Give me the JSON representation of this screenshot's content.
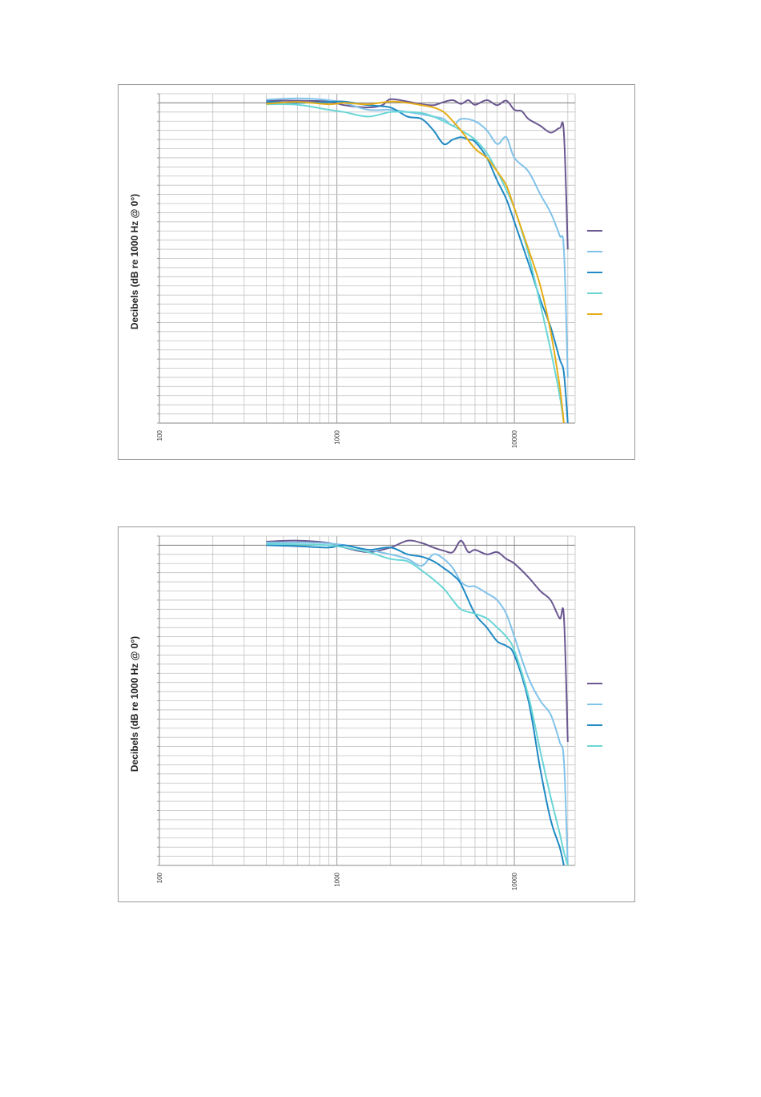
{
  "chart_data": [
    {
      "type": "line",
      "ylabel": "Decibels (dB re 1000 Hz @ 0°)",
      "x_scale": "log",
      "xlim": [
        100,
        22000
      ],
      "x_ticks": [
        "100",
        "1000",
        "10000"
      ],
      "ylim": [
        -70,
        2
      ],
      "grid": true,
      "legend": "right",
      "series": [
        {
          "color": "#6b5891",
          "points": [
            [
              400,
              0.5
            ],
            [
              600,
              0.5
            ],
            [
              900,
              0.3
            ],
            [
              1100,
              -0.5
            ],
            [
              1500,
              -1
            ],
            [
              1800,
              -0.5
            ],
            [
              2000,
              0.8
            ],
            [
              2500,
              0.3
            ],
            [
              3000,
              -0.3
            ],
            [
              3500,
              -0.5
            ],
            [
              4000,
              0.2
            ],
            [
              4500,
              0.6
            ],
            [
              5000,
              -0.2
            ],
            [
              5500,
              0.6
            ],
            [
              6000,
              -0.4
            ],
            [
              7000,
              0.6
            ],
            [
              8000,
              -0.5
            ],
            [
              9000,
              0.5
            ],
            [
              10000,
              -1.5
            ],
            [
              11000,
              -1.8
            ],
            [
              12000,
              -3.5
            ],
            [
              14000,
              -5
            ],
            [
              16000,
              -6.5
            ],
            [
              18000,
              -5.5
            ],
            [
              19000,
              -6.5
            ],
            [
              20000,
              -32
            ]
          ]
        },
        {
          "color": "#82c3ea",
          "points": [
            [
              400,
              0.7
            ],
            [
              600,
              1
            ],
            [
              900,
              0.6
            ],
            [
              1100,
              0
            ],
            [
              1500,
              -1.5
            ],
            [
              2000,
              -1.5
            ],
            [
              2500,
              -2
            ],
            [
              3000,
              -2.5
            ],
            [
              3500,
              -3
            ],
            [
              4000,
              -3.5
            ],
            [
              4500,
              -5
            ],
            [
              5000,
              -3.5
            ],
            [
              6000,
              -4
            ],
            [
              7000,
              -6
            ],
            [
              8000,
              -9
            ],
            [
              9000,
              -7.5
            ],
            [
              10000,
              -12
            ],
            [
              12000,
              -15
            ],
            [
              14000,
              -20
            ],
            [
              16000,
              -24
            ],
            [
              18000,
              -29
            ],
            [
              19000,
              -32
            ],
            [
              20000,
              -60
            ]
          ]
        },
        {
          "color": "#1f8ac4",
          "points": [
            [
              400,
              0.3
            ],
            [
              600,
              0
            ],
            [
              900,
              0.2
            ],
            [
              1100,
              0.3
            ],
            [
              1500,
              -0.5
            ],
            [
              2000,
              -1
            ],
            [
              2500,
              -3
            ],
            [
              3000,
              -3.5
            ],
            [
              3500,
              -6
            ],
            [
              4000,
              -9
            ],
            [
              4500,
              -8
            ],
            [
              5000,
              -7.5
            ],
            [
              5500,
              -8
            ],
            [
              6000,
              -8.5
            ],
            [
              7000,
              -12
            ],
            [
              8000,
              -17
            ],
            [
              9000,
              -21
            ],
            [
              10000,
              -26
            ],
            [
              12000,
              -35
            ],
            [
              14000,
              -43
            ],
            [
              16000,
              -49
            ],
            [
              18000,
              -56
            ],
            [
              19000,
              -59
            ],
            [
              20000,
              -70
            ]
          ]
        },
        {
          "color": "#6ad6d6",
          "points": [
            [
              400,
              -0.3
            ],
            [
              600,
              -0.4
            ],
            [
              900,
              -1.5
            ],
            [
              1100,
              -2
            ],
            [
              1500,
              -3
            ],
            [
              2000,
              -2
            ],
            [
              2500,
              -2
            ],
            [
              3000,
              -2.2
            ],
            [
              3500,
              -3
            ],
            [
              4000,
              -4
            ],
            [
              4500,
              -5
            ],
            [
              5000,
              -6
            ],
            [
              6000,
              -8
            ],
            [
              7000,
              -11
            ],
            [
              8000,
              -15
            ],
            [
              9000,
              -19
            ],
            [
              10000,
              -23
            ],
            [
              11000,
              -28
            ],
            [
              12000,
              -33
            ],
            [
              14000,
              -44
            ],
            [
              16000,
              -54
            ],
            [
              18000,
              -64
            ],
            [
              19000,
              -70
            ]
          ]
        },
        {
          "color": "#e6ad17",
          "points": [
            [
              400,
              -0.2
            ],
            [
              600,
              0.2
            ],
            [
              900,
              -0.3
            ],
            [
              1100,
              0
            ],
            [
              1500,
              -0.3
            ],
            [
              2000,
              0.3
            ],
            [
              2500,
              0
            ],
            [
              3000,
              -0.5
            ],
            [
              3500,
              -1
            ],
            [
              4000,
              -2
            ],
            [
              4500,
              -4
            ],
            [
              5000,
              -6
            ],
            [
              6000,
              -10
            ],
            [
              7000,
              -12
            ],
            [
              8000,
              -15
            ],
            [
              9000,
              -18
            ],
            [
              10000,
              -23
            ],
            [
              12000,
              -32
            ],
            [
              14000,
              -40
            ],
            [
              16000,
              -50
            ],
            [
              18000,
              -62
            ],
            [
              19000,
              -70
            ]
          ]
        }
      ]
    },
    {
      "type": "line",
      "ylabel": "Decibels (dB re 1000 Hz @ 0°)",
      "x_scale": "log",
      "xlim": [
        100,
        22000
      ],
      "x_ticks": [
        "100",
        "1000",
        "10000"
      ],
      "ylim": [
        -70,
        2
      ],
      "grid": true,
      "legend": "right",
      "series": [
        {
          "color": "#6b5891",
          "points": [
            [
              400,
              0.8
            ],
            [
              600,
              1
            ],
            [
              900,
              0.5
            ],
            [
              1100,
              -0.5
            ],
            [
              1500,
              -1.5
            ],
            [
              2000,
              -0.5
            ],
            [
              2500,
              1
            ],
            [
              3000,
              0.5
            ],
            [
              3500,
              -0.5
            ],
            [
              4000,
              -1.2
            ],
            [
              4500,
              -1.5
            ],
            [
              5000,
              1
            ],
            [
              5500,
              -1.5
            ],
            [
              6000,
              -1
            ],
            [
              7000,
              -2
            ],
            [
              8000,
              -1.5
            ],
            [
              9000,
              -3
            ],
            [
              10000,
              -4
            ],
            [
              12000,
              -7
            ],
            [
              14000,
              -10
            ],
            [
              16000,
              -12
            ],
            [
              18000,
              -16
            ],
            [
              19000,
              -15.5
            ],
            [
              20000,
              -43
            ]
          ]
        },
        {
          "color": "#82c3ea",
          "points": [
            [
              400,
              0.6
            ],
            [
              600,
              0.6
            ],
            [
              900,
              0.4
            ],
            [
              1100,
              0
            ],
            [
              1500,
              -1
            ],
            [
              2000,
              -2
            ],
            [
              2500,
              -3
            ],
            [
              3000,
              -4.5
            ],
            [
              3500,
              -2
            ],
            [
              4000,
              -3
            ],
            [
              4500,
              -5
            ],
            [
              5000,
              -8
            ],
            [
              5500,
              -9
            ],
            [
              6000,
              -9
            ],
            [
              7000,
              -10.5
            ],
            [
              8000,
              -12
            ],
            [
              9000,
              -15
            ],
            [
              10000,
              -20
            ],
            [
              12000,
              -29
            ],
            [
              14000,
              -34
            ],
            [
              16000,
              -37
            ],
            [
              18000,
              -43
            ],
            [
              19000,
              -47
            ],
            [
              20000,
              -70
            ]
          ]
        },
        {
          "color": "#1f8ac4",
          "points": [
            [
              400,
              0
            ],
            [
              600,
              -0.2
            ],
            [
              900,
              -0.5
            ],
            [
              1100,
              0
            ],
            [
              1500,
              -1
            ],
            [
              2000,
              -0.5
            ],
            [
              2500,
              -2
            ],
            [
              3000,
              -2.5
            ],
            [
              3500,
              -3.5
            ],
            [
              4000,
              -5
            ],
            [
              4500,
              -6.5
            ],
            [
              5000,
              -8.5
            ],
            [
              6000,
              -15
            ],
            [
              7000,
              -18
            ],
            [
              8000,
              -21
            ],
            [
              9000,
              -22
            ],
            [
              10000,
              -24
            ],
            [
              12000,
              -34
            ],
            [
              14000,
              -49
            ],
            [
              16000,
              -60
            ],
            [
              18000,
              -66
            ],
            [
              19000,
              -70
            ]
          ]
        },
        {
          "color": "#6ad6d6",
          "points": [
            [
              400,
              0.3
            ],
            [
              600,
              0.2
            ],
            [
              900,
              0
            ],
            [
              1100,
              -0.5
            ],
            [
              1500,
              -1.5
            ],
            [
              2000,
              -3
            ],
            [
              2500,
              -3.5
            ],
            [
              3000,
              -5.5
            ],
            [
              3500,
              -7.5
            ],
            [
              4000,
              -9.5
            ],
            [
              4500,
              -12
            ],
            [
              5000,
              -14
            ],
            [
              6000,
              -15
            ],
            [
              7000,
              -16
            ],
            [
              8000,
              -18
            ],
            [
              9000,
              -20
            ],
            [
              10000,
              -23
            ],
            [
              12000,
              -33
            ],
            [
              14000,
              -45
            ],
            [
              16000,
              -55
            ],
            [
              18000,
              -63
            ],
            [
              19000,
              -67
            ],
            [
              20000,
              -70
            ]
          ]
        }
      ]
    }
  ]
}
